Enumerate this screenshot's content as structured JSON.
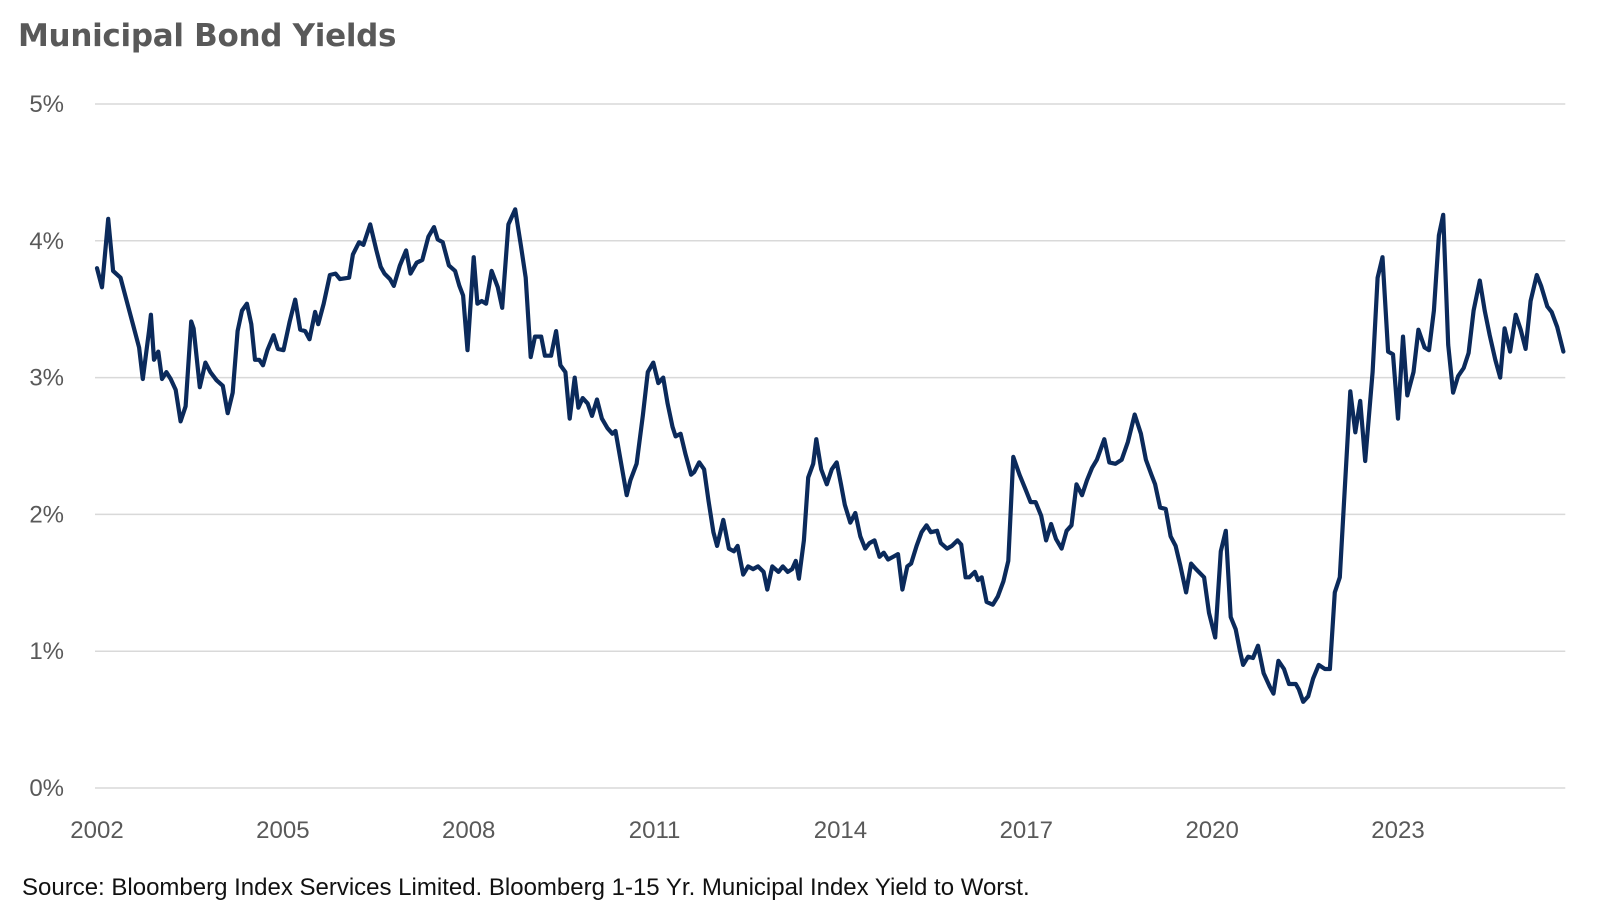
{
  "chart_data": {
    "type": "line",
    "title": "Municipal Bond Yields",
    "source": "Source: Bloomberg Index Services Limited. Bloomberg 1-15 Yr. Municipal Index Yield to Worst.",
    "xlabel": "",
    "ylabel": "",
    "xlim": [
      2002,
      2025.7
    ],
    "ylim": [
      0,
      5
    ],
    "x_ticks": [
      "2002",
      "2005",
      "2008",
      "2011",
      "2014",
      "2017",
      "2020",
      "2023"
    ],
    "y_ticks": [
      "0%",
      "1%",
      "2%",
      "3%",
      "4%",
      "5%"
    ],
    "grid": "horizontal",
    "legend": "none",
    "line_color": "#0b2a5b",
    "grid_color": "#d9d9d9",
    "series": [
      {
        "points": [
          [
            2002.0,
            3.8
          ],
          [
            2002.08,
            3.66
          ],
          [
            2002.18,
            4.16
          ],
          [
            2002.26,
            3.78
          ],
          [
            2002.38,
            3.73
          ],
          [
            2002.48,
            3.56
          ],
          [
            2002.58,
            3.39
          ],
          [
            2002.68,
            3.22
          ],
          [
            2002.74,
            2.99
          ],
          [
            2002.84,
            3.34
          ],
          [
            2002.87,
            3.46
          ],
          [
            2002.92,
            3.13
          ],
          [
            2002.99,
            3.19
          ],
          [
            2003.05,
            2.99
          ],
          [
            2003.12,
            3.04
          ],
          [
            2003.19,
            2.99
          ],
          [
            2003.27,
            2.91
          ],
          [
            2003.35,
            2.68
          ],
          [
            2003.43,
            2.79
          ],
          [
            2003.52,
            3.41
          ],
          [
            2003.56,
            3.36
          ],
          [
            2003.66,
            2.93
          ],
          [
            2003.75,
            3.11
          ],
          [
            2003.83,
            3.04
          ],
          [
            2003.93,
            2.98
          ],
          [
            2004.03,
            2.94
          ],
          [
            2004.11,
            2.74
          ],
          [
            2004.19,
            2.89
          ],
          [
            2004.27,
            3.34
          ],
          [
            2004.34,
            3.49
          ],
          [
            2004.42,
            3.54
          ],
          [
            2004.49,
            3.39
          ],
          [
            2004.55,
            3.13
          ],
          [
            2004.62,
            3.13
          ],
          [
            2004.68,
            3.09
          ],
          [
            2004.75,
            3.2
          ],
          [
            2004.85,
            3.31
          ],
          [
            2004.92,
            3.21
          ],
          [
            2005.01,
            3.2
          ],
          [
            2005.11,
            3.41
          ],
          [
            2005.2,
            3.57
          ],
          [
            2005.28,
            3.35
          ],
          [
            2005.36,
            3.34
          ],
          [
            2005.43,
            3.28
          ],
          [
            2005.52,
            3.48
          ],
          [
            2005.57,
            3.39
          ],
          [
            2005.66,
            3.54
          ],
          [
            2005.76,
            3.75
          ],
          [
            2005.85,
            3.76
          ],
          [
            2005.92,
            3.72
          ],
          [
            2006.07,
            3.73
          ],
          [
            2006.13,
            3.9
          ],
          [
            2006.23,
            3.99
          ],
          [
            2006.3,
            3.97
          ],
          [
            2006.41,
            4.12
          ],
          [
            2006.51,
            3.93
          ],
          [
            2006.58,
            3.81
          ],
          [
            2006.64,
            3.76
          ],
          [
            2006.73,
            3.72
          ],
          [
            2006.79,
            3.67
          ],
          [
            2006.89,
            3.82
          ],
          [
            2006.99,
            3.93
          ],
          [
            2007.06,
            3.76
          ],
          [
            2007.16,
            3.84
          ],
          [
            2007.25,
            3.86
          ],
          [
            2007.35,
            4.03
          ],
          [
            2007.44,
            4.1
          ],
          [
            2007.5,
            4.01
          ],
          [
            2007.58,
            3.99
          ],
          [
            2007.68,
            3.82
          ],
          [
            2007.78,
            3.78
          ],
          [
            2007.85,
            3.67
          ],
          [
            2007.91,
            3.6
          ],
          [
            2007.98,
            3.2
          ],
          [
            2008.08,
            3.88
          ],
          [
            2008.14,
            3.54
          ],
          [
            2008.21,
            3.56
          ],
          [
            2008.28,
            3.54
          ],
          [
            2008.37,
            3.78
          ],
          [
            2008.47,
            3.66
          ],
          [
            2008.54,
            3.51
          ],
          [
            2008.64,
            4.12
          ],
          [
            2008.75,
            4.23
          ],
          [
            2008.84,
            3.97
          ],
          [
            2008.92,
            3.73
          ],
          [
            2009.0,
            3.15
          ],
          [
            2009.07,
            3.3
          ],
          [
            2009.17,
            3.3
          ],
          [
            2009.23,
            3.16
          ],
          [
            2009.33,
            3.16
          ],
          [
            2009.41,
            3.34
          ],
          [
            2009.48,
            3.09
          ],
          [
            2009.56,
            3.04
          ],
          [
            2009.63,
            2.7
          ],
          [
            2009.71,
            3.0
          ],
          [
            2009.77,
            2.78
          ],
          [
            2009.84,
            2.85
          ],
          [
            2009.92,
            2.81
          ],
          [
            2009.99,
            2.72
          ],
          [
            2010.07,
            2.84
          ],
          [
            2010.15,
            2.7
          ],
          [
            2010.24,
            2.63
          ],
          [
            2010.32,
            2.59
          ],
          [
            2010.37,
            2.61
          ],
          [
            2010.45,
            2.4
          ],
          [
            2010.55,
            2.14
          ],
          [
            2010.61,
            2.25
          ],
          [
            2010.71,
            2.37
          ],
          [
            2010.81,
            2.72
          ],
          [
            2010.89,
            3.04
          ],
          [
            2010.98,
            3.11
          ],
          [
            2011.06,
            2.96
          ],
          [
            2011.14,
            3.0
          ],
          [
            2011.21,
            2.81
          ],
          [
            2011.29,
            2.64
          ],
          [
            2011.34,
            2.57
          ],
          [
            2011.42,
            2.59
          ],
          [
            2011.5,
            2.44
          ],
          [
            2011.59,
            2.29
          ],
          [
            2011.64,
            2.31
          ],
          [
            2011.72,
            2.38
          ],
          [
            2011.8,
            2.33
          ],
          [
            2011.87,
            2.1
          ],
          [
            2011.95,
            1.87
          ],
          [
            2012.01,
            1.77
          ],
          [
            2012.11,
            1.96
          ],
          [
            2012.2,
            1.75
          ],
          [
            2012.28,
            1.73
          ],
          [
            2012.34,
            1.77
          ],
          [
            2012.43,
            1.56
          ],
          [
            2012.51,
            1.62
          ],
          [
            2012.59,
            1.6
          ],
          [
            2012.67,
            1.62
          ],
          [
            2012.76,
            1.58
          ],
          [
            2012.82,
            1.45
          ],
          [
            2012.9,
            1.62
          ],
          [
            2013.0,
            1.58
          ],
          [
            2013.07,
            1.62
          ],
          [
            2013.15,
            1.58
          ],
          [
            2013.22,
            1.6
          ],
          [
            2013.28,
            1.66
          ],
          [
            2013.33,
            1.53
          ],
          [
            2013.41,
            1.81
          ],
          [
            2013.48,
            2.27
          ],
          [
            2013.56,
            2.37
          ],
          [
            2013.61,
            2.55
          ],
          [
            2013.69,
            2.33
          ],
          [
            2013.78,
            2.22
          ],
          [
            2013.86,
            2.33
          ],
          [
            2013.94,
            2.38
          ],
          [
            2014.01,
            2.22
          ],
          [
            2014.07,
            2.07
          ],
          [
            2014.16,
            1.94
          ],
          [
            2014.24,
            2.01
          ],
          [
            2014.32,
            1.84
          ],
          [
            2014.4,
            1.75
          ],
          [
            2014.47,
            1.79
          ],
          [
            2014.55,
            1.81
          ],
          [
            2014.63,
            1.69
          ],
          [
            2014.7,
            1.72
          ],
          [
            2014.77,
            1.67
          ],
          [
            2014.85,
            1.69
          ],
          [
            2014.93,
            1.71
          ],
          [
            2015.0,
            1.45
          ],
          [
            2015.08,
            1.62
          ],
          [
            2015.14,
            1.64
          ],
          [
            2015.23,
            1.77
          ],
          [
            2015.31,
            1.87
          ],
          [
            2015.39,
            1.92
          ],
          [
            2015.46,
            1.87
          ],
          [
            2015.56,
            1.88
          ],
          [
            2015.62,
            1.79
          ],
          [
            2015.72,
            1.75
          ],
          [
            2015.8,
            1.77
          ],
          [
            2015.89,
            1.81
          ],
          [
            2015.95,
            1.78
          ],
          [
            2016.02,
            1.54
          ],
          [
            2016.08,
            1.54
          ],
          [
            2016.17,
            1.58
          ],
          [
            2016.22,
            1.52
          ],
          [
            2016.28,
            1.54
          ],
          [
            2016.36,
            1.36
          ],
          [
            2016.46,
            1.34
          ],
          [
            2016.54,
            1.4
          ],
          [
            2016.63,
            1.51
          ],
          [
            2016.71,
            1.66
          ],
          [
            2016.79,
            2.42
          ],
          [
            2016.89,
            2.29
          ],
          [
            2016.99,
            2.18
          ],
          [
            2017.07,
            2.09
          ],
          [
            2017.15,
            2.09
          ],
          [
            2017.24,
            1.99
          ],
          [
            2017.32,
            1.81
          ],
          [
            2017.4,
            1.93
          ],
          [
            2017.48,
            1.82
          ],
          [
            2017.57,
            1.75
          ],
          [
            2017.65,
            1.88
          ],
          [
            2017.73,
            1.92
          ],
          [
            2017.81,
            2.22
          ],
          [
            2017.9,
            2.14
          ],
          [
            2017.98,
            2.25
          ],
          [
            2018.06,
            2.34
          ],
          [
            2018.14,
            2.4
          ],
          [
            2018.26,
            2.55
          ],
          [
            2018.34,
            2.38
          ],
          [
            2018.44,
            2.37
          ],
          [
            2018.54,
            2.4
          ],
          [
            2018.64,
            2.53
          ],
          [
            2018.75,
            2.73
          ],
          [
            2018.85,
            2.59
          ],
          [
            2018.93,
            2.4
          ],
          [
            2019.02,
            2.29
          ],
          [
            2019.08,
            2.22
          ],
          [
            2019.16,
            2.05
          ],
          [
            2019.25,
            2.04
          ],
          [
            2019.33,
            1.84
          ],
          [
            2019.41,
            1.77
          ],
          [
            2019.49,
            1.62
          ],
          [
            2019.58,
            1.43
          ],
          [
            2019.66,
            1.64
          ],
          [
            2019.74,
            1.6
          ],
          [
            2019.87,
            1.54
          ],
          [
            2019.95,
            1.28
          ],
          [
            2020.05,
            1.1
          ],
          [
            2020.14,
            1.73
          ],
          [
            2020.22,
            1.88
          ],
          [
            2020.3,
            1.25
          ],
          [
            2020.38,
            1.16
          ],
          [
            2020.45,
            1.0
          ],
          [
            2020.5,
            0.9
          ],
          [
            2020.58,
            0.96
          ],
          [
            2020.66,
            0.95
          ],
          [
            2020.74,
            1.04
          ],
          [
            2020.83,
            0.84
          ],
          [
            2020.93,
            0.74
          ],
          [
            2020.99,
            0.69
          ],
          [
            2021.07,
            0.93
          ],
          [
            2021.16,
            0.87
          ],
          [
            2021.24,
            0.76
          ],
          [
            2021.35,
            0.76
          ],
          [
            2021.4,
            0.72
          ],
          [
            2021.47,
            0.63
          ],
          [
            2021.55,
            0.67
          ],
          [
            2021.63,
            0.8
          ],
          [
            2021.72,
            0.9
          ],
          [
            2021.82,
            0.87
          ],
          [
            2021.9,
            0.87
          ],
          [
            2021.98,
            1.43
          ],
          [
            2022.06,
            1.54
          ],
          [
            2022.13,
            2.1
          ],
          [
            2022.23,
            2.9
          ],
          [
            2022.31,
            2.6
          ],
          [
            2022.39,
            2.83
          ],
          [
            2022.47,
            2.39
          ],
          [
            2022.59,
            3.04
          ],
          [
            2022.67,
            3.73
          ],
          [
            2022.75,
            3.88
          ],
          [
            2022.84,
            3.19
          ],
          [
            2022.92,
            3.17
          ],
          [
            2023.0,
            2.7
          ],
          [
            2023.08,
            3.3
          ],
          [
            2023.15,
            2.87
          ],
          [
            2023.25,
            3.04
          ],
          [
            2023.33,
            3.35
          ],
          [
            2023.43,
            3.22
          ],
          [
            2023.5,
            3.2
          ],
          [
            2023.58,
            3.49
          ],
          [
            2023.66,
            4.04
          ],
          [
            2023.73,
            4.19
          ],
          [
            2023.81,
            3.24
          ],
          [
            2023.89,
            2.89
          ],
          [
            2023.97,
            3.01
          ],
          [
            2024.06,
            3.07
          ],
          [
            2024.14,
            3.18
          ],
          [
            2024.22,
            3.49
          ],
          [
            2024.32,
            3.71
          ],
          [
            2024.4,
            3.49
          ],
          [
            2024.48,
            3.31
          ],
          [
            2024.57,
            3.13
          ],
          [
            2024.65,
            3.0
          ],
          [
            2024.72,
            3.36
          ],
          [
            2024.81,
            3.19
          ],
          [
            2024.9,
            3.46
          ],
          [
            2024.98,
            3.35
          ],
          [
            2025.06,
            3.21
          ],
          [
            2025.14,
            3.56
          ],
          [
            2025.24,
            3.75
          ],
          [
            2025.31,
            3.67
          ],
          [
            2025.41,
            3.52
          ],
          [
            2025.48,
            3.48
          ],
          [
            2025.57,
            3.37
          ],
          [
            2025.67,
            3.19
          ]
        ]
      }
    ]
  }
}
